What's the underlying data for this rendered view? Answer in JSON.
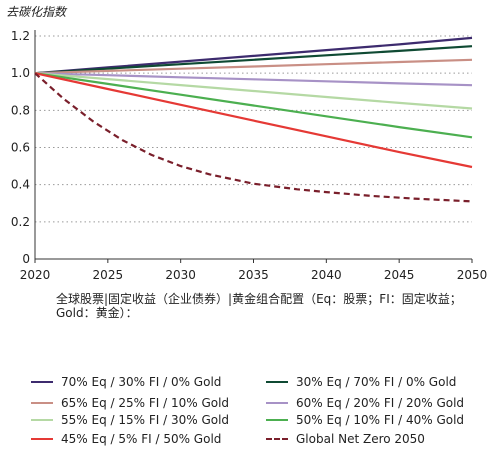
{
  "chart_data": {
    "type": "line",
    "title": "",
    "ylabel": "去碳化指数",
    "caption": "全球股票|固定收益（企业债券）|黄金组合配置（Eq：股票；FI：固定收益；Gold：黄金）：",
    "x": [
      2020,
      2025,
      2030,
      2035,
      2040,
      2045,
      2050
    ],
    "xlim": [
      2020,
      2050
    ],
    "ylim": [
      0,
      1.2
    ],
    "yticks": [
      "0",
      "0.2",
      "0.4",
      "0.6",
      "0.8",
      "1.0",
      "1.2"
    ],
    "xticks": [
      "2020",
      "2025",
      "2030",
      "2035",
      "2040",
      "2045",
      "2050"
    ],
    "grid": "horizontal-dotted",
    "legend_placement": "bottom",
    "series": [
      {
        "name": "70% Eq / 30% FI / 0% Gold",
        "color": "#3d2b6e",
        "dash": false,
        "values": [
          1.0,
          1.031,
          1.062,
          1.093,
          1.124,
          1.155,
          1.19
        ]
      },
      {
        "name": "30% Eq / 70% FI / 0% Gold",
        "color": "#0f4a33",
        "dash": false,
        "values": [
          1.0,
          1.024,
          1.048,
          1.072,
          1.096,
          1.12,
          1.145
        ]
      },
      {
        "name": "65% Eq / 25% FI / 10% Gold",
        "color": "#c98f85",
        "dash": false,
        "values": [
          1.0,
          1.012,
          1.024,
          1.036,
          1.048,
          1.06,
          1.072
        ]
      },
      {
        "name": "60% Eq / 20% FI / 20% Gold",
        "color": "#a792c6",
        "dash": false,
        "values": [
          1.0,
          0.989,
          0.978,
          0.967,
          0.956,
          0.945,
          0.935
        ]
      },
      {
        "name": "55% Eq / 15% FI / 30% Gold",
        "color": "#b5d9a4",
        "dash": false,
        "values": [
          1.0,
          0.968,
          0.936,
          0.904,
          0.872,
          0.84,
          0.81
        ]
      },
      {
        "name": "50% Eq / 10% FI / 40% Gold",
        "color": "#4caf50",
        "dash": false,
        "values": [
          1.0,
          0.942,
          0.884,
          0.826,
          0.768,
          0.71,
          0.655
        ]
      },
      {
        "name": "45% Eq / 5% FI / 50% Gold",
        "color": "#e53935",
        "dash": false,
        "values": [
          1.0,
          0.915,
          0.83,
          0.745,
          0.66,
          0.575,
          0.495
        ]
      },
      {
        "name": "Global Net Zero 2050",
        "color": "#7a1f2b",
        "dash": true,
        "points": [
          [
            2020,
            1.0
          ],
          [
            2022,
            0.86
          ],
          [
            2024,
            0.74
          ],
          [
            2026,
            0.64
          ],
          [
            2028,
            0.56
          ],
          [
            2030,
            0.5
          ],
          [
            2032,
            0.455
          ],
          [
            2035,
            0.405
          ],
          [
            2038,
            0.375
          ],
          [
            2040,
            0.36
          ],
          [
            2043,
            0.34
          ],
          [
            2046,
            0.325
          ],
          [
            2050,
            0.31
          ]
        ]
      }
    ]
  }
}
